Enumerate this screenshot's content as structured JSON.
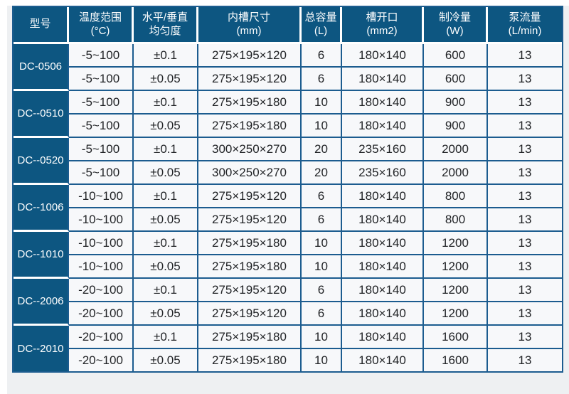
{
  "colors": {
    "header_bg": "#0d5681",
    "grid_line": "#1c5c8f",
    "cell_bg": "#f7f8fa",
    "page_bg": "#eef0f2",
    "header_text": "#ffffff",
    "body_text": "#212326"
  },
  "table": {
    "headers": [
      {
        "key": "model",
        "lines": [
          "型号"
        ]
      },
      {
        "key": "temp-range",
        "lines": [
          "温度范围",
          "(°C)"
        ]
      },
      {
        "key": "uniformity",
        "lines": [
          "水平/垂直",
          "均匀度"
        ]
      },
      {
        "key": "inner-tank-size",
        "lines": [
          "内槽尺寸",
          "(mm)"
        ]
      },
      {
        "key": "total-capacity",
        "lines": [
          "总容量",
          "(L)"
        ]
      },
      {
        "key": "tank-opening",
        "lines": [
          "槽开口",
          "(mm2)"
        ]
      },
      {
        "key": "cooling-capacity",
        "lines": [
          "制冷量",
          "(W)"
        ]
      },
      {
        "key": "pump-flow",
        "lines": [
          "泵流量",
          "(L/min)"
        ]
      }
    ],
    "groups": [
      {
        "model": "DC-0506",
        "rows": [
          [
            "-5~100",
            "±0.1",
            "275×195×120",
            "6",
            "180×140",
            "600",
            "13"
          ],
          [
            "-5~100",
            "±0.05",
            "275×195×120",
            "6",
            "180×140",
            "600",
            "13"
          ]
        ]
      },
      {
        "model": "DC--0510",
        "rows": [
          [
            "-5~100",
            "±0.1",
            "275×195×180",
            "10",
            "180×140",
            "900",
            "13"
          ],
          [
            "-5~100",
            "±0.05",
            "275×195×180",
            "10",
            "180×140",
            "900",
            "13"
          ]
        ]
      },
      {
        "model": "DC--0520",
        "rows": [
          [
            "-5~100",
            "±0.1",
            "300×250×270",
            "20",
            "235×160",
            "2000",
            "13"
          ],
          [
            "-5~100",
            "±0.05",
            "300×250×270",
            "20",
            "235×160",
            "2000",
            "13"
          ]
        ]
      },
      {
        "model": "DC--1006",
        "rows": [
          [
            "-10~100",
            "±0.1",
            "275×195×120",
            "6",
            "180×140",
            "800",
            "13"
          ],
          [
            "-10~100",
            "±0.05",
            "275×195×120",
            "6",
            "180×140",
            "800",
            "13"
          ]
        ]
      },
      {
        "model": "DC--1010",
        "rows": [
          [
            "-10~100",
            "±0.1",
            "275×195×180",
            "10",
            "180×140",
            "1200",
            "13"
          ],
          [
            "-10~100",
            "±0.05",
            "275×195×180",
            "10",
            "180×140",
            "1200",
            "13"
          ]
        ]
      },
      {
        "model": "DC--2006",
        "rows": [
          [
            "-20~100",
            "±0.1",
            "275×195×120",
            "6",
            "180×140",
            "1200",
            "13"
          ],
          [
            "-20~100",
            "±0.05",
            "275×195×120",
            "6",
            "180×140",
            "1200",
            "13"
          ]
        ]
      },
      {
        "model": "DC--2010",
        "rows": [
          [
            "-20~100",
            "±0.1",
            "275×195×180",
            "10",
            "180×140",
            "1600",
            "13"
          ],
          [
            "-20~100",
            "±0.05",
            "275×195×180",
            "10",
            "180×140",
            "1600",
            "13"
          ]
        ]
      }
    ]
  }
}
